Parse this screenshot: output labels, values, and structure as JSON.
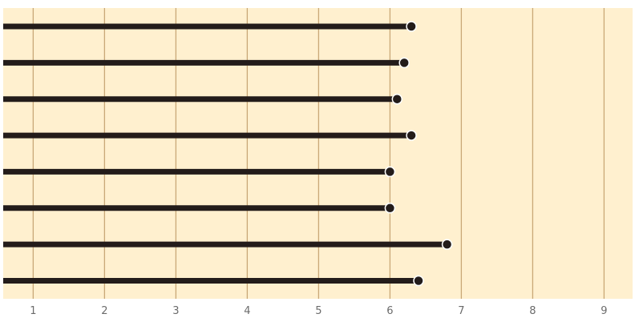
{
  "chart_data": {
    "type": "lollipop",
    "orientation": "horizontal",
    "title": "",
    "xlabel": "",
    "ylabel": "",
    "xlim": [
      0.58,
      9.4
    ],
    "x_ticks": [
      1,
      2,
      3,
      4,
      5,
      6,
      7,
      8,
      9
    ],
    "x_tick_labels": [
      "1",
      "2",
      "3",
      "4",
      "5",
      "6",
      "7",
      "8",
      "9"
    ],
    "values": [
      6.3,
      6.2,
      6.1,
      6.3,
      6.0,
      6.0,
      6.8,
      6.4
    ],
    "grid": "vertical",
    "colors": {
      "plot_background": "#fff0cf",
      "gridline": "#c9a877",
      "bar": "#231c1a",
      "dot_outline": "#ffffff",
      "tick_label": "#6b6b6b"
    }
  }
}
